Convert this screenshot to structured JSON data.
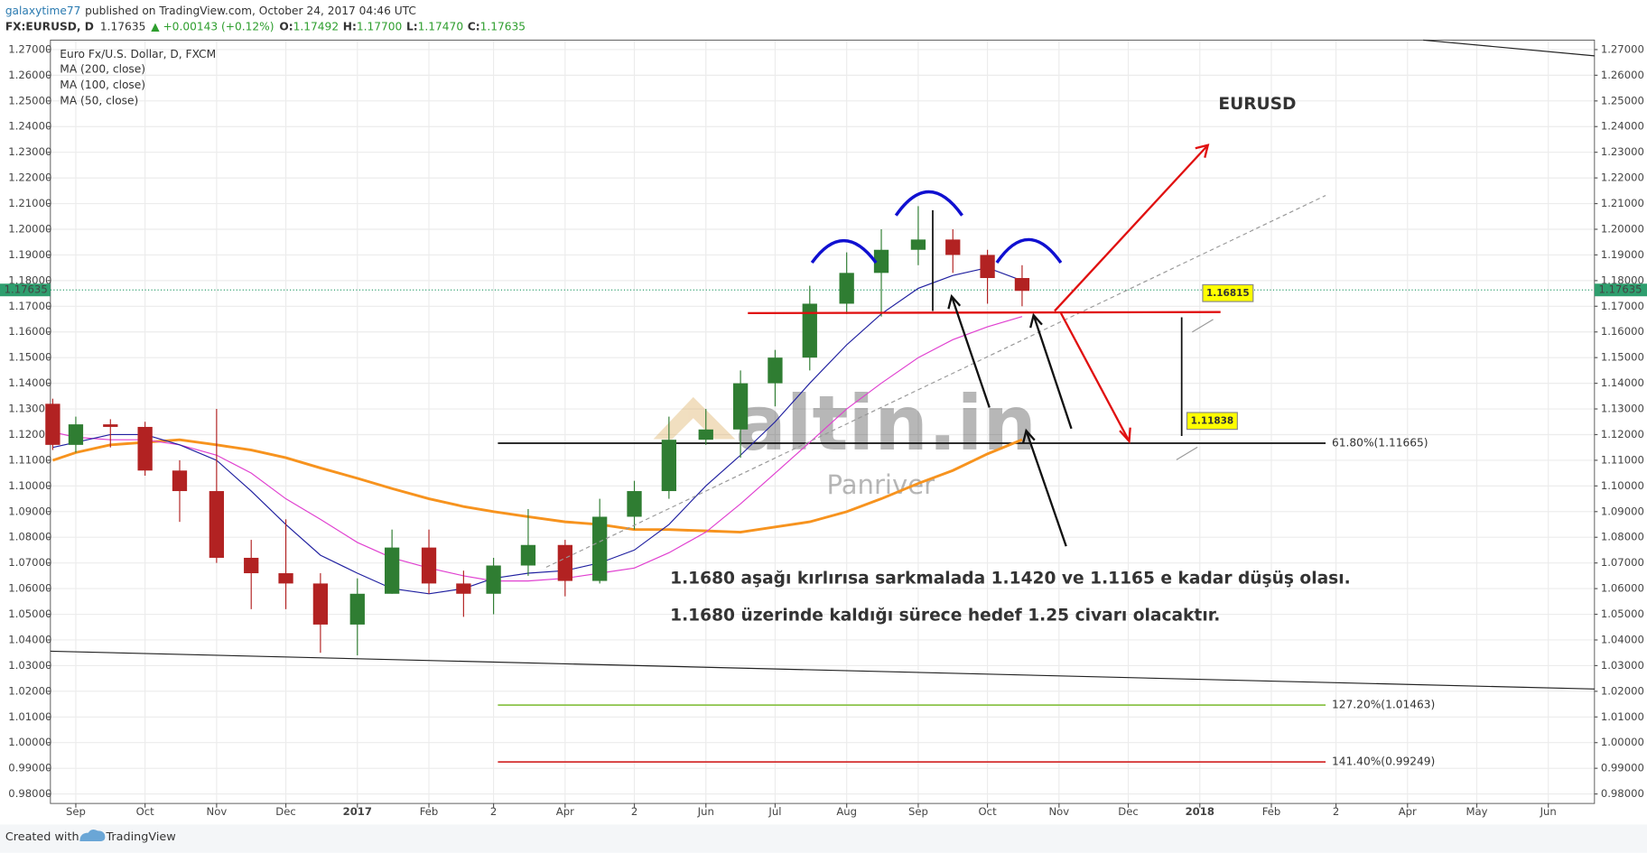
{
  "header": {
    "author": "galaxytime77",
    "published": "published on TradingView.com, October 24, 2017 04:46 UTC",
    "symbol": "FX:EURUSD, D",
    "last": "1.17635",
    "change": "▲ +0.00143 (+0.12%)",
    "ohlc": [
      {
        "key": "O:",
        "value": "1.17492"
      },
      {
        "key": "H:",
        "value": "1.17700"
      },
      {
        "key": "L:",
        "value": "1.17470"
      },
      {
        "key": "C:",
        "value": "1.17635"
      }
    ]
  },
  "watermark": {
    "brand": "altin.in",
    "sub": "Panriver"
  },
  "footer": {
    "created": "Created with",
    "brand": "TradingView"
  },
  "chart_data": {
    "type": "candlestick",
    "title": "EURUSD",
    "annotations": [
      "1.1680 aşağı kırlırısa sarkmalada 1.1420 ve 1.1165 e kadar düşüş olası.",
      "1.1680 üzerinde kaldığı sürece hedef 1.25 civarı olacaktır."
    ],
    "x": [
      "2016-08-22",
      "2016-09-01",
      "2016-09-16",
      "2016-10-01",
      "2016-10-16",
      "2016-11-01",
      "2016-11-16",
      "2016-12-01",
      "2016-12-16",
      "2017-01-01",
      "2017-01-16",
      "2017-02-01",
      "2017-02-16",
      "2017-03-01",
      "2017-03-16",
      "2017-04-01",
      "2017-04-16",
      "2017-05-01",
      "2017-05-16",
      "2017-06-01",
      "2017-06-16",
      "2017-07-01",
      "2017-07-16",
      "2017-08-01",
      "2017-08-16",
      "2017-09-01",
      "2017-09-16",
      "2017-10-01",
      "2017-10-16"
    ],
    "candles": {
      "name": "Euro Fx/U.S. Dollar, D, FXCM",
      "up_color": "#2f7d32",
      "down_color": "#b22222",
      "open": [
        1.132,
        1.116,
        1.124,
        1.123,
        1.106,
        1.098,
        1.072,
        1.066,
        1.062,
        1.046,
        1.058,
        1.076,
        1.062,
        1.058,
        1.069,
        1.077,
        1.063,
        1.088,
        1.098,
        1.118,
        1.122,
        1.14,
        1.15,
        1.171,
        1.183,
        1.192,
        1.196,
        1.19,
        1.181
      ],
      "high": [
        1.134,
        1.127,
        1.126,
        1.125,
        1.11,
        1.13,
        1.079,
        1.087,
        1.066,
        1.064,
        1.083,
        1.083,
        1.067,
        1.072,
        1.091,
        1.079,
        1.095,
        1.102,
        1.127,
        1.13,
        1.145,
        1.153,
        1.178,
        1.191,
        1.2,
        1.209,
        1.2,
        1.192,
        1.186
      ],
      "low": [
        1.114,
        1.113,
        1.115,
        1.104,
        1.086,
        1.07,
        1.052,
        1.052,
        1.035,
        1.034,
        1.058,
        1.058,
        1.049,
        1.05,
        1.065,
        1.057,
        1.062,
        1.083,
        1.095,
        1.116,
        1.111,
        1.131,
        1.145,
        1.167,
        1.166,
        1.186,
        1.183,
        1.171,
        1.17
      ],
      "close": [
        1.116,
        1.124,
        1.123,
        1.106,
        1.098,
        1.072,
        1.066,
        1.062,
        1.046,
        1.058,
        1.076,
        1.062,
        1.058,
        1.069,
        1.077,
        1.063,
        1.088,
        1.098,
        1.118,
        1.122,
        1.14,
        1.15,
        1.171,
        1.183,
        1.192,
        1.196,
        1.19,
        1.181,
        1.176
      ]
    },
    "series": [
      {
        "name": "MA (200, close)",
        "color": "#f7931e",
        "width": 2.5,
        "values": [
          1.11,
          1.113,
          1.116,
          1.117,
          1.118,
          1.116,
          1.114,
          1.111,
          1.107,
          1.103,
          1.099,
          1.095,
          1.092,
          1.09,
          1.088,
          1.086,
          1.085,
          1.083,
          1.083,
          1.0825,
          1.082,
          1.084,
          1.086,
          1.09,
          1.095,
          1.101,
          1.106,
          1.1125,
          1.118
        ]
      },
      {
        "name": "MA (100, close)",
        "color": "#e040d0",
        "width": 1,
        "values": [
          1.121,
          1.119,
          1.118,
          1.118,
          1.116,
          1.112,
          1.105,
          1.095,
          1.087,
          1.078,
          1.072,
          1.068,
          1.065,
          1.063,
          1.063,
          1.064,
          1.066,
          1.068,
          1.074,
          1.082,
          1.093,
          1.105,
          1.117,
          1.13,
          1.14,
          1.15,
          1.157,
          1.162,
          1.166
        ]
      },
      {
        "name": "MA (50, close)",
        "color": "#2020a0",
        "width": 1,
        "values": [
          1.115,
          1.117,
          1.12,
          1.12,
          1.116,
          1.11,
          1.098,
          1.085,
          1.073,
          1.066,
          1.06,
          1.058,
          1.06,
          1.064,
          1.066,
          1.067,
          1.07,
          1.075,
          1.085,
          1.1,
          1.112,
          1.125,
          1.14,
          1.155,
          1.167,
          1.177,
          1.182,
          1.185,
          1.18
        ]
      }
    ],
    "last_price": {
      "value": 1.17635,
      "label": "1.17635",
      "color": "#2e9e6e"
    },
    "fib_levels": [
      {
        "value": 1.11665,
        "label": "61.80%(1.11665)",
        "color": "#111111"
      },
      {
        "value": 1.01463,
        "label": "127.20%(1.01463)",
        "color": "#8bc34a"
      },
      {
        "value": 0.99249,
        "label": "141.40%(0.99249)",
        "color": "#d32f2f"
      }
    ],
    "price_labels": [
      1.16815,
      1.11838
    ],
    "xlim": [
      "2016-08-21",
      "2018-06-21"
    ],
    "xticks": [
      {
        "value": "2016-09-01",
        "label": "Sep"
      },
      {
        "value": "2016-10-01",
        "label": "Oct"
      },
      {
        "value": "2016-11-01",
        "label": "Nov"
      },
      {
        "value": "2016-12-01",
        "label": "Dec"
      },
      {
        "value": "2017-01-01",
        "label": "2017"
      },
      {
        "value": "2017-02-01",
        "label": "Feb"
      },
      {
        "value": "2017-03-01",
        "label": "2"
      },
      {
        "value": "2017-04-01",
        "label": "Apr"
      },
      {
        "value": "2017-05-01",
        "label": "2"
      },
      {
        "value": "2017-06-01",
        "label": "Jun"
      },
      {
        "value": "2017-07-01",
        "label": "Jul"
      },
      {
        "value": "2017-08-01",
        "label": "Aug"
      },
      {
        "value": "2017-09-01",
        "label": "Sep"
      },
      {
        "value": "2017-10-01",
        "label": "Oct"
      },
      {
        "value": "2017-11-01",
        "label": "Nov"
      },
      {
        "value": "2017-12-01",
        "label": "Dec"
      },
      {
        "value": "2018-01-01",
        "label": "2018"
      },
      {
        "value": "2018-02-01",
        "label": "Feb"
      },
      {
        "value": "2018-03-01",
        "label": "2"
      },
      {
        "value": "2018-04-01",
        "label": "Apr"
      },
      {
        "value": "2018-05-01",
        "label": "May"
      },
      {
        "value": "2018-06-01",
        "label": "Jun"
      }
    ],
    "ylim": [
      0.9763,
      1.2737
    ],
    "yticks": [
      {
        "value": 1.27,
        "label": "1.27000"
      },
      {
        "value": 1.26,
        "label": "1.26000"
      },
      {
        "value": 1.25,
        "label": "1.25000"
      },
      {
        "value": 1.24,
        "label": "1.24000"
      },
      {
        "value": 1.23,
        "label": "1.23000"
      },
      {
        "value": 1.22,
        "label": "1.22000"
      },
      {
        "value": 1.21,
        "label": "1.21000"
      },
      {
        "value": 1.2,
        "label": "1.20000"
      },
      {
        "value": 1.19,
        "label": "1.19000"
      },
      {
        "value": 1.18,
        "label": "1.18000"
      },
      {
        "value": 1.17,
        "label": "1.17000"
      },
      {
        "value": 1.16,
        "label": "1.16000"
      },
      {
        "value": 1.15,
        "label": "1.15000"
      },
      {
        "value": 1.14,
        "label": "1.14000"
      },
      {
        "value": 1.13,
        "label": "1.13000"
      },
      {
        "value": 1.12,
        "label": "1.12000"
      },
      {
        "value": 1.11,
        "label": "1.11000"
      },
      {
        "value": 1.1,
        "label": "1.10000"
      },
      {
        "value": 1.09,
        "label": "1.09000"
      },
      {
        "value": 1.08,
        "label": "1.08000"
      },
      {
        "value": 1.07,
        "label": "1.07000"
      },
      {
        "value": 1.06,
        "label": "1.06000"
      },
      {
        "value": 1.05,
        "label": "1.05000"
      },
      {
        "value": 1.04,
        "label": "1.04000"
      },
      {
        "value": 1.03,
        "label": "1.03000"
      },
      {
        "value": 1.02,
        "label": "1.02000"
      },
      {
        "value": 1.01,
        "label": "1.01000"
      },
      {
        "value": 1.0,
        "label": "1.00000"
      },
      {
        "value": 0.99,
        "label": "0.99000"
      },
      {
        "value": 0.98,
        "label": "0.98000"
      }
    ],
    "grid": true
  }
}
